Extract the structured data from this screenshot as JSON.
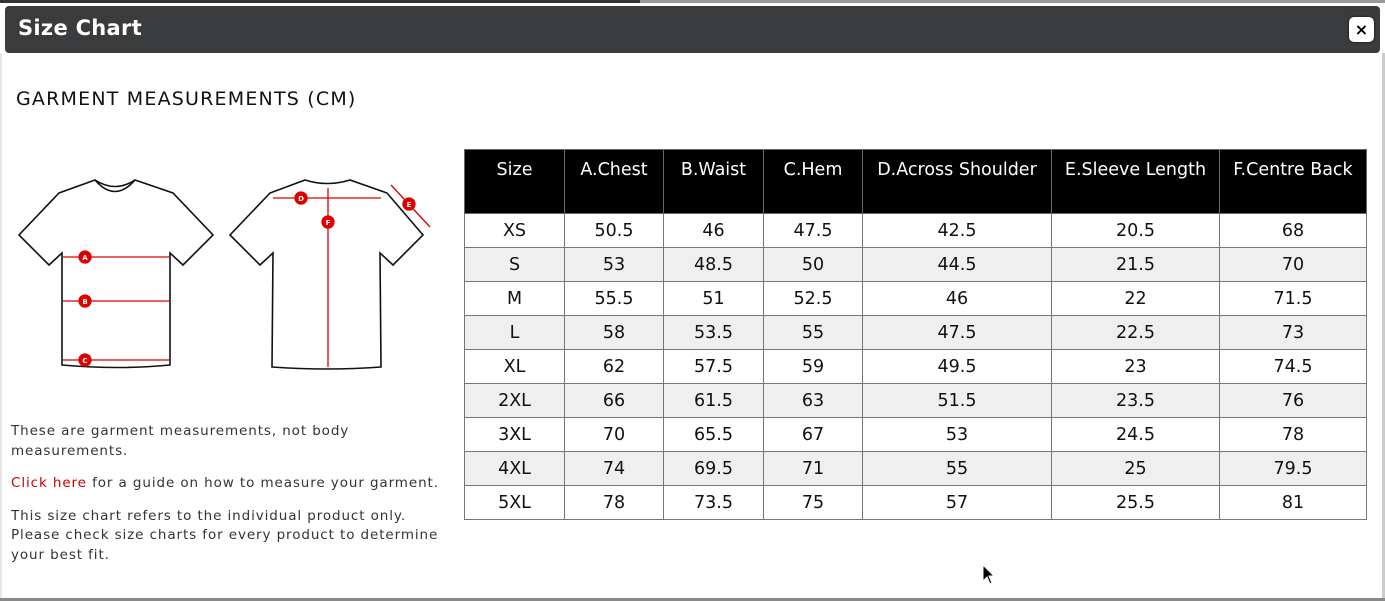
{
  "modal": {
    "title": "Size Chart",
    "close_label": "×"
  },
  "heading": "GARMENT MEASUREMENTS (CM)",
  "notes": {
    "line1": "These are garment measurements, not body measurements.",
    "link": "Click here",
    "line2": " for a guide on how to measure your garment.",
    "line3": "This size chart refers to the individual product only. Please check size charts for every product to determine your best fit."
  },
  "diagram_labels": [
    "A",
    "B",
    "C",
    "D",
    "E",
    "F"
  ],
  "colors": {
    "header": "#3a3b3c",
    "accent": "#cc0000",
    "table_header": "#000000"
  },
  "table": {
    "headers": [
      "Size",
      "A.Chest",
      "B.Waist",
      "C.Hem",
      "D.Across Shoulder",
      "E.Sleeve Length",
      "F.Centre Back"
    ],
    "rows": [
      [
        "XS",
        "50.5",
        "46",
        "47.5",
        "42.5",
        "20.5",
        "68"
      ],
      [
        "S",
        "53",
        "48.5",
        "50",
        "44.5",
        "21.5",
        "70"
      ],
      [
        "M",
        "55.5",
        "51",
        "52.5",
        "46",
        "22",
        "71.5"
      ],
      [
        "L",
        "58",
        "53.5",
        "55",
        "47.5",
        "22.5",
        "73"
      ],
      [
        "XL",
        "62",
        "57.5",
        "59",
        "49.5",
        "23",
        "74.5"
      ],
      [
        "2XL",
        "66",
        "61.5",
        "63",
        "51.5",
        "23.5",
        "76"
      ],
      [
        "3XL",
        "70",
        "65.5",
        "67",
        "53",
        "24.5",
        "78"
      ],
      [
        "4XL",
        "74",
        "69.5",
        "71",
        "55",
        "25",
        "79.5"
      ],
      [
        "5XL",
        "78",
        "73.5",
        "75",
        "57",
        "25.5",
        "81"
      ]
    ]
  }
}
